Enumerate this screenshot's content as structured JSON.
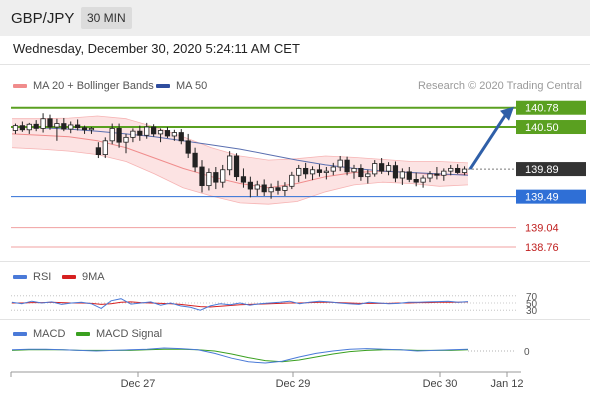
{
  "header": {
    "symbol": "GBP/JPY",
    "timeframe": "30 MIN",
    "datetime": "Wednesday, December 30, 2020 5:24:11 AM CET"
  },
  "legend": {
    "ma20": {
      "label": "MA 20 + Bollinger Bands",
      "color": "#f08c8c"
    },
    "ma50": {
      "label": "MA 50",
      "color": "#2f4d9e"
    },
    "credit": "Research © 2020 Trading Central",
    "rsi": {
      "label": "RSI",
      "color": "#4a7ad8"
    },
    "rsi9ma": {
      "label": "9MA",
      "color": "#d62020"
    },
    "macd": {
      "label": "MACD",
      "color": "#4a7ad8"
    },
    "macd_signal": {
      "label": "MACD Signal",
      "color": "#3aa020"
    }
  },
  "chart_data": [
    {
      "type": "candlestick",
      "name": "price",
      "ylim": [
        138.6,
        140.95
      ],
      "levels": [
        {
          "value": 140.78,
          "label": "140.78",
          "style": "green-box",
          "color": "#5aa020"
        },
        {
          "value": 140.5,
          "label": "140.50",
          "style": "green-box",
          "color": "#5aa020"
        },
        {
          "value": 139.89,
          "label": "139.89",
          "style": "dark-box",
          "color": "#333333"
        },
        {
          "value": 139.49,
          "label": "139.49",
          "style": "blue-box",
          "color": "#2f6fd6"
        },
        {
          "value": 139.04,
          "label": "139.04",
          "style": "red-text",
          "color": "#c02020"
        },
        {
          "value": 138.76,
          "label": "138.76",
          "style": "red-text",
          "color": "#c02020"
        }
      ],
      "forecast_arrow": {
        "from": 139.89,
        "to": 140.78
      },
      "candles": [
        [
          140.45,
          140.55,
          140.4,
          140.52
        ],
        [
          140.52,
          140.58,
          140.43,
          140.46
        ],
        [
          140.46,
          140.56,
          140.4,
          140.54
        ],
        [
          140.54,
          140.6,
          140.44,
          140.48
        ],
        [
          140.48,
          140.7,
          140.42,
          140.62
        ],
        [
          140.62,
          140.68,
          140.46,
          140.5
        ],
        [
          140.5,
          140.62,
          140.3,
          140.55
        ],
        [
          140.55,
          140.63,
          140.44,
          140.47
        ],
        [
          140.47,
          140.58,
          140.41,
          140.53
        ],
        [
          140.53,
          140.61,
          140.45,
          140.49
        ],
        [
          140.49,
          140.52,
          140.4,
          140.46
        ],
        [
          140.46,
          140.5,
          140.4,
          140.48
        ],
        [
          140.2,
          140.28,
          140.05,
          140.1
        ],
        [
          140.1,
          140.35,
          140.05,
          140.3
        ],
        [
          140.3,
          140.55,
          140.25,
          140.48
        ],
        [
          140.48,
          140.55,
          140.2,
          140.28
        ],
        [
          140.28,
          140.4,
          140.12,
          140.35
        ],
        [
          140.35,
          140.48,
          140.28,
          140.44
        ],
        [
          140.44,
          140.52,
          140.3,
          140.38
        ],
        [
          140.38,
          140.56,
          140.33,
          140.5
        ],
        [
          140.5,
          140.54,
          140.36,
          140.4
        ],
        [
          140.4,
          140.48,
          140.28,
          140.45
        ],
        [
          140.45,
          140.5,
          140.34,
          140.37
        ],
        [
          140.37,
          140.46,
          140.3,
          140.42
        ],
        [
          140.42,
          140.47,
          140.25,
          140.3
        ],
        [
          140.3,
          140.4,
          140.05,
          140.12
        ],
        [
          140.12,
          140.2,
          139.85,
          139.92
        ],
        [
          139.92,
          140.02,
          139.55,
          139.65
        ],
        [
          139.65,
          139.9,
          139.58,
          139.84
        ],
        [
          139.84,
          139.92,
          139.6,
          139.7
        ],
        [
          139.7,
          139.95,
          139.62,
          139.88
        ],
        [
          139.88,
          140.15,
          139.8,
          140.08
        ],
        [
          140.08,
          140.12,
          139.72,
          139.78
        ],
        [
          139.78,
          139.9,
          139.62,
          139.7
        ],
        [
          139.7,
          139.78,
          139.48,
          139.6
        ],
        [
          139.6,
          139.72,
          139.5,
          139.66
        ],
        [
          139.66,
          139.74,
          139.5,
          139.56
        ],
        [
          139.56,
          139.68,
          139.46,
          139.62
        ],
        [
          139.62,
          139.72,
          139.52,
          139.58
        ],
        [
          139.58,
          139.7,
          139.5,
          139.64
        ],
        [
          139.64,
          139.85,
          139.6,
          139.8
        ],
        [
          139.8,
          139.95,
          139.7,
          139.9
        ],
        [
          139.9,
          139.98,
          139.75,
          139.82
        ],
        [
          139.82,
          139.93,
          139.73,
          139.88
        ],
        [
          139.88,
          139.96,
          139.78,
          139.84
        ],
        [
          139.84,
          139.92,
          139.74,
          139.86
        ],
        [
          139.86,
          139.98,
          139.8,
          139.92
        ],
        [
          139.92,
          140.08,
          139.86,
          140.02
        ],
        [
          140.02,
          140.07,
          139.8,
          139.85
        ],
        [
          139.85,
          139.95,
          139.75,
          139.9
        ],
        [
          139.9,
          139.96,
          139.72,
          139.78
        ],
        [
          139.78,
          139.88,
          139.68,
          139.82
        ],
        [
          139.82,
          140.02,
          139.78,
          139.97
        ],
        [
          139.97,
          140.05,
          139.82,
          139.86
        ],
        [
          139.86,
          139.99,
          139.8,
          139.94
        ],
        [
          139.94,
          140.0,
          139.7,
          139.76
        ],
        [
          139.76,
          139.9,
          139.66,
          139.85
        ],
        [
          139.85,
          139.92,
          139.7,
          139.74
        ],
        [
          139.74,
          139.84,
          139.64,
          139.7
        ],
        [
          139.7,
          139.8,
          139.62,
          139.76
        ],
        [
          139.76,
          139.86,
          139.7,
          139.82
        ],
        [
          139.82,
          139.92,
          139.74,
          139.8
        ],
        [
          139.8,
          139.9,
          139.72,
          139.86
        ],
        [
          139.86,
          139.95,
          139.8,
          139.9
        ],
        [
          139.9,
          139.96,
          139.82,
          139.84
        ],
        [
          139.84,
          139.93,
          139.8,
          139.89
        ]
      ],
      "ma50": [
        140.5,
        140.49,
        140.47,
        140.44,
        140.4,
        140.36,
        140.3,
        140.24,
        140.18,
        140.1,
        140.02,
        139.95,
        139.9,
        139.86,
        139.84,
        139.82,
        139.8
      ],
      "ma20": [
        140.4,
        140.38,
        140.36,
        140.3,
        140.2,
        140.05,
        139.9,
        139.78,
        139.68,
        139.62,
        139.68,
        139.78,
        139.84,
        139.86,
        139.84,
        139.8,
        139.82
      ],
      "bb_upper": [
        140.62,
        140.62,
        140.63,
        140.66,
        140.62,
        140.5,
        140.36,
        140.2,
        140.08,
        140.02,
        140.04,
        140.08,
        140.06,
        140.03,
        140.0,
        140.0,
        139.98
      ],
      "bb_lower": [
        140.2,
        140.18,
        140.15,
        140.1,
        140.0,
        139.82,
        139.62,
        139.5,
        139.4,
        139.38,
        139.42,
        139.56,
        139.66,
        139.7,
        139.68,
        139.64,
        139.66
      ]
    },
    {
      "type": "line",
      "name": "rsi",
      "levels": [
        {
          "value": 70,
          "label": "70"
        },
        {
          "value": 50,
          "label": "50"
        },
        {
          "value": 30,
          "label": "30"
        }
      ],
      "series": [
        {
          "name": "RSI",
          "values": [
            52,
            48,
            55,
            50,
            53,
            46,
            50,
            52,
            48,
            35,
            56,
            62,
            47,
            50,
            53,
            44,
            50,
            42,
            38,
            30,
            42,
            48,
            45,
            50,
            44,
            48,
            50,
            52,
            55,
            48,
            52,
            55,
            53,
            50,
            48,
            46,
            52,
            50,
            48,
            49,
            52,
            52,
            53,
            54,
            55,
            52,
            54
          ]
        },
        {
          "name": "9MA",
          "values": [
            50,
            50,
            51,
            51,
            52,
            51,
            50,
            50,
            49,
            46,
            48,
            52,
            53,
            51,
            50,
            49,
            48,
            46,
            43,
            40,
            39,
            41,
            43,
            45,
            46,
            47,
            48,
            49,
            50,
            50,
            51,
            52,
            52,
            51,
            50,
            49,
            49,
            49,
            49,
            50,
            50,
            51,
            51,
            52,
            52,
            52,
            53
          ]
        }
      ]
    },
    {
      "type": "line",
      "name": "macd",
      "levels": [
        {
          "value": 0,
          "label": "0"
        }
      ],
      "series": [
        {
          "name": "MACD",
          "values": [
            0.02,
            0.03,
            0.03,
            0.02,
            0.01,
            0.0,
            0.01,
            0.02,
            0.03,
            0.05,
            0.04,
            0.02,
            -0.04,
            -0.12,
            -0.18,
            -0.2,
            -0.17,
            -0.1,
            -0.04,
            0.0,
            0.03,
            0.04,
            0.03,
            0.02,
            0.0,
            0.01,
            0.02,
            0.03
          ]
        },
        {
          "name": "MACD Signal",
          "values": [
            0.01,
            0.02,
            0.02,
            0.02,
            0.01,
            0.01,
            0.01,
            0.01,
            0.02,
            0.03,
            0.03,
            0.02,
            0.0,
            -0.05,
            -0.11,
            -0.16,
            -0.18,
            -0.15,
            -0.1,
            -0.05,
            -0.01,
            0.01,
            0.02,
            0.02,
            0.01,
            0.01,
            0.01,
            0.02
          ]
        }
      ]
    }
  ],
  "x_axis": {
    "ticks": [
      "Dec 27",
      "Dec 29",
      "Dec 30",
      "Jan 12"
    ]
  }
}
